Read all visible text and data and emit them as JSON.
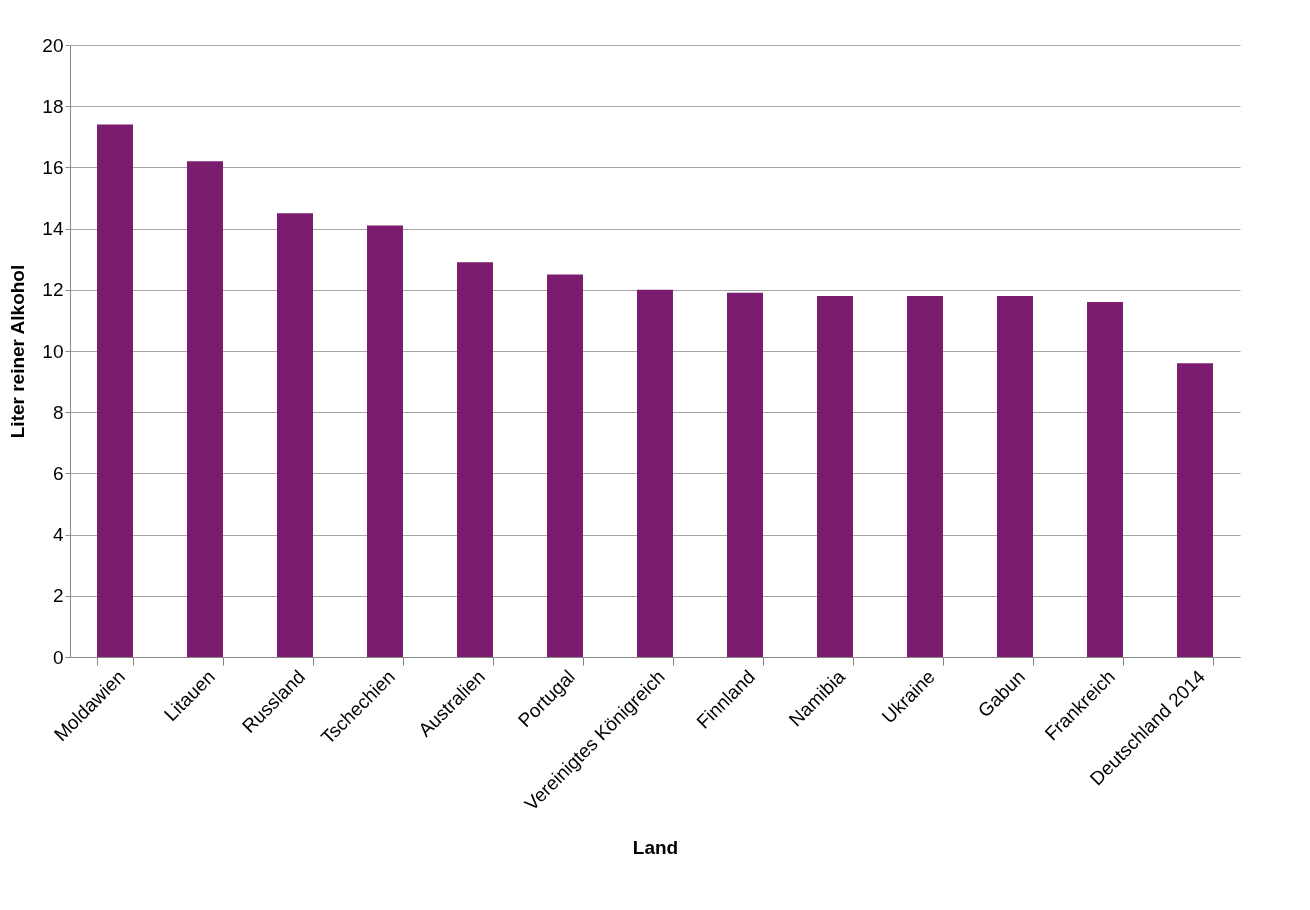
{
  "chart_data": {
    "type": "bar",
    "xlabel": "Land",
    "ylabel": "Liter reiner Alkohol",
    "categories": [
      "Moldawien",
      "Litauen",
      "Russland",
      "Tschechien",
      "Australien",
      "Portugal",
      "Vereinigtes Königreich",
      "Finnland",
      "Namibia",
      "Ukraine",
      "Gabun",
      "Frankreich",
      "Deutschland 2014"
    ],
    "values": [
      17.4,
      16.2,
      14.5,
      14.1,
      12.9,
      12.5,
      12.0,
      11.9,
      11.8,
      11.8,
      11.8,
      11.6,
      9.6
    ],
    "color": "#7b1c6e",
    "ylim": [
      0,
      20
    ],
    "yticks": [
      0,
      2,
      4,
      6,
      8,
      10,
      12,
      14,
      16,
      18,
      20
    ],
    "grid": "y"
  }
}
